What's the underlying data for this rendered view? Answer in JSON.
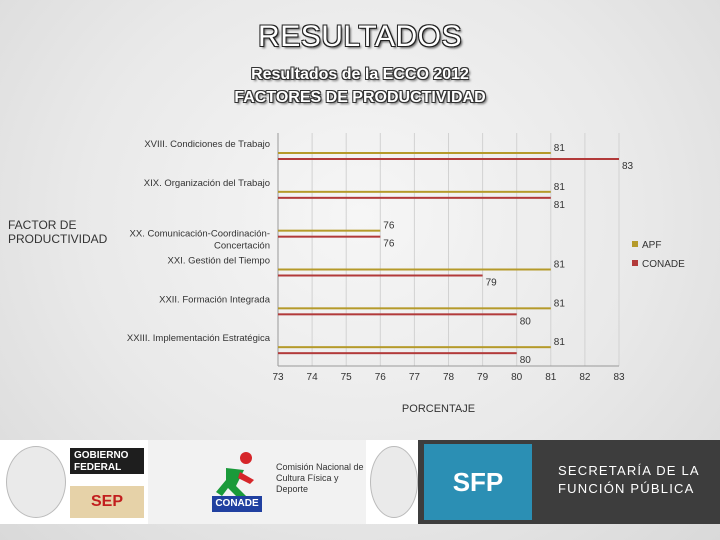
{
  "slide": {
    "title": "RESULTADOS",
    "subtitle1": "Resultados  de la ECCO 2012",
    "subtitle2": "FACTORES DE PRODUCTIVIDAD",
    "y_axis_label": "FACTOR DE\n PRODUCTIVIDAD"
  },
  "chart_data": {
    "type": "bar",
    "orientation": "horizontal",
    "title": "",
    "xlabel": "PORCENTAJE",
    "ylabel": "FACTOR DE PRODUCTIVIDAD",
    "xlim": [
      73,
      83
    ],
    "xticks": [
      73,
      74,
      75,
      76,
      77,
      78,
      79,
      80,
      81,
      82,
      83
    ],
    "categories": [
      "XVIII. Condiciones de Trabajo",
      "XIX. Organización del Trabajo",
      "XX. Comunicación-Coordinación-Concertación",
      "XXI. Gestión del Tiempo",
      "XXII. Formación Integrada",
      "XXIII. Implementación Estratégica"
    ],
    "series": [
      {
        "name": "APF",
        "color": "#b59a2a",
        "values": [
          81,
          81,
          76,
          81,
          81,
          81
        ]
      },
      {
        "name": "CONADE",
        "color": "#b23a3a",
        "values": [
          83,
          81,
          76,
          79,
          80,
          80
        ]
      }
    ],
    "legend": "right"
  },
  "footer": {
    "gobierno": "GOBIERNO FEDERAL",
    "sep": "SEP",
    "conade": "CONADE",
    "conade_name": "Comisión Nacional de Cultura Física y Deporte",
    "sfp": "SFP",
    "sfp_name": "SECRETARÍA DE LA FUNCIÓN PÚBLICA"
  }
}
